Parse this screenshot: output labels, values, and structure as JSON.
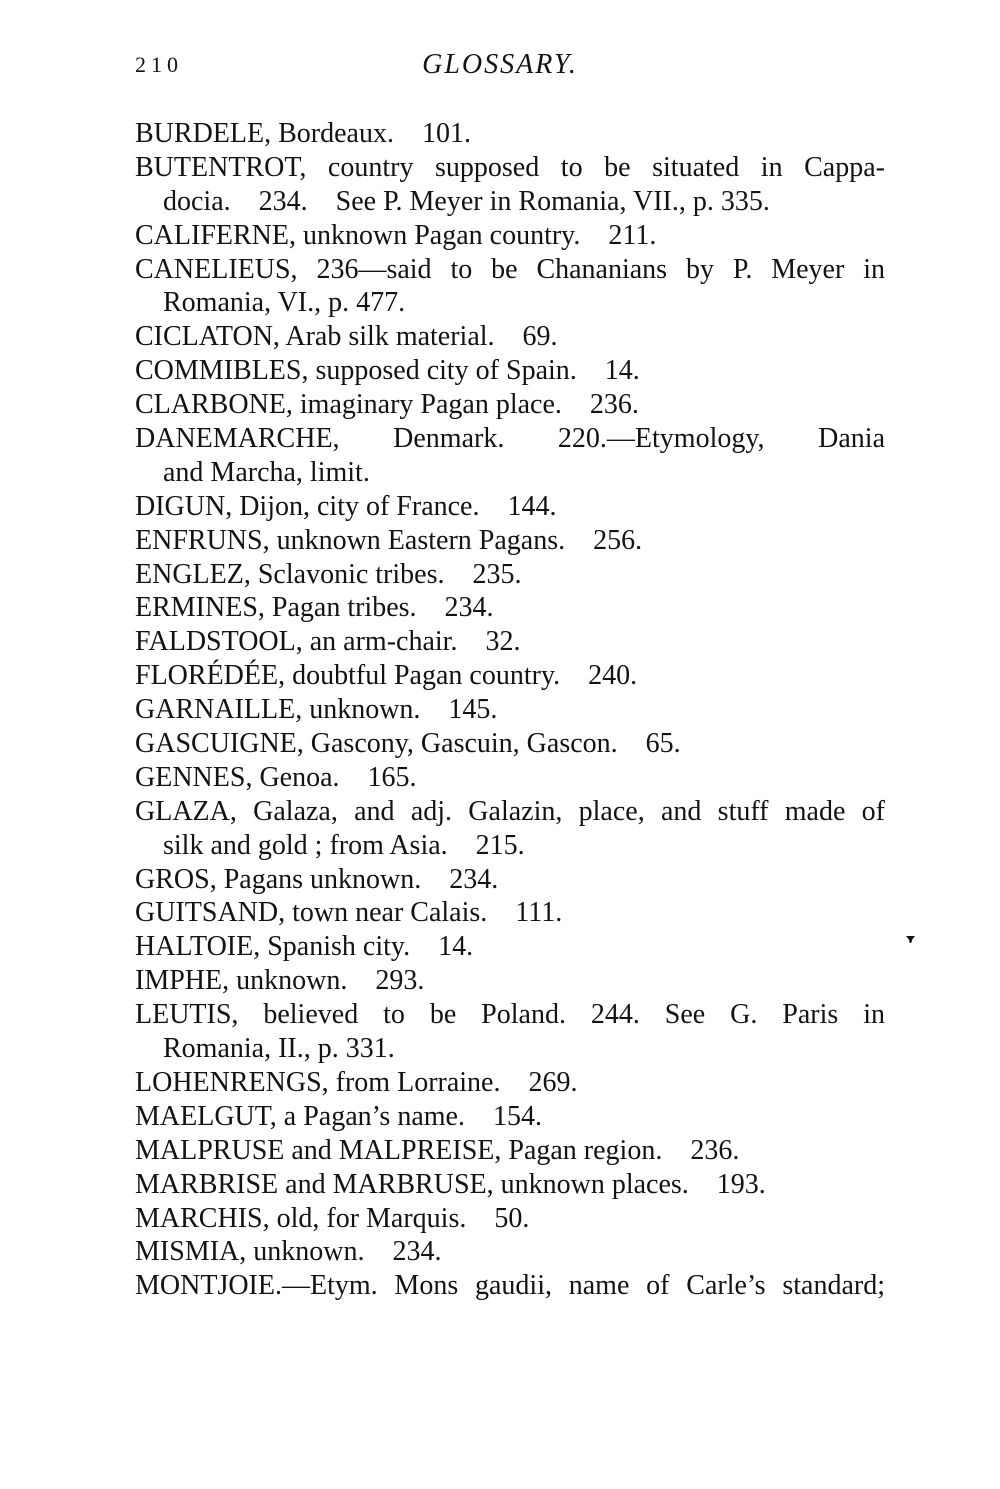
{
  "header": {
    "page_number": "210",
    "title": "GLOSSARY."
  },
  "entries": [
    {
      "term": "BURDELE",
      "lines": [
        {
          "text": "BURDELE, Bordeaux. 101.",
          "indent": false,
          "justify": false
        }
      ]
    },
    {
      "term": "BUTENTROT",
      "lines": [
        {
          "text": "BUTENTROT, country supposed to be situated in Cappa-",
          "indent": false,
          "justify": true
        },
        {
          "text": "docia. 234. See P. Meyer in Romania, VII., p. 335.",
          "indent": true,
          "justify": false
        }
      ]
    },
    {
      "term": "CALIFERNE",
      "lines": [
        {
          "text": "CALIFERNE, unknown Pagan country. 211.",
          "indent": false,
          "justify": false
        }
      ]
    },
    {
      "term": "CANELIEUS",
      "lines": [
        {
          "text": "CANELIEUS, 236—said to be Chananians by P. Meyer in",
          "indent": false,
          "justify": true
        },
        {
          "text": "Romania, VI., p. 477.",
          "indent": true,
          "justify": false
        }
      ]
    },
    {
      "term": "CICLATON",
      "lines": [
        {
          "text": "CICLATON, Arab silk material. 69.",
          "indent": false,
          "justify": false
        }
      ]
    },
    {
      "term": "COMMIBLES",
      "lines": [
        {
          "text": "COMMIBLES, supposed city of Spain. 14.",
          "indent": false,
          "justify": false
        }
      ]
    },
    {
      "term": "CLARBONE",
      "lines": [
        {
          "text": "CLARBONE, imaginary Pagan place. 236.",
          "indent": false,
          "justify": false
        }
      ]
    },
    {
      "term": "DANEMARCHE",
      "lines": [
        {
          "text": "DANEMARCHE, Denmark. 220.—Etymology, Dania",
          "indent": false,
          "justify": true
        },
        {
          "text": "and Marcha, limit.",
          "indent": true,
          "justify": false
        }
      ]
    },
    {
      "term": "DIGUN",
      "lines": [
        {
          "text": "DIGUN, Dijon, city of France. 144.",
          "indent": false,
          "justify": false
        }
      ]
    },
    {
      "term": "ENFRUNS",
      "lines": [
        {
          "text": "ENFRUNS, unknown Eastern Pagans. 256.",
          "indent": false,
          "justify": false
        }
      ]
    },
    {
      "term": "ENGLEZ",
      "lines": [
        {
          "text": "ENGLEZ, Sclavonic tribes. 235.",
          "indent": false,
          "justify": false
        }
      ]
    },
    {
      "term": "ERMINES",
      "lines": [
        {
          "text": "ERMINES, Pagan tribes. 234.",
          "indent": false,
          "justify": false
        }
      ]
    },
    {
      "term": "FALDSTOOL",
      "lines": [
        {
          "text": "FALDSTOOL, an arm-chair. 32.",
          "indent": false,
          "justify": false
        }
      ]
    },
    {
      "term": "FLORÉDÉE",
      "lines": [
        {
          "text": "FLORÉDÉE, doubtful Pagan country. 240.",
          "indent": false,
          "justify": false
        }
      ]
    },
    {
      "term": "GARNAILLE",
      "lines": [
        {
          "text": "GARNAILLE, unknown. 145.",
          "indent": false,
          "justify": false
        }
      ]
    },
    {
      "term": "GASCUIGNE",
      "lines": [
        {
          "text": "GASCUIGNE, Gascony, Gascuin, Gascon. 65.",
          "indent": false,
          "justify": false
        }
      ]
    },
    {
      "term": "GENNES",
      "lines": [
        {
          "text": "GENNES, Genoa. 165.",
          "indent": false,
          "justify": false
        }
      ]
    },
    {
      "term": "GLAZA",
      "lines": [
        {
          "text": "GLAZA, Galaza, and adj. Galazin, place, and stuff made of",
          "indent": false,
          "justify": true
        },
        {
          "text": "silk and gold ; from Asia. 215.",
          "indent": true,
          "justify": false
        }
      ]
    },
    {
      "term": "GROS",
      "lines": [
        {
          "text": "GROS, Pagans unknown. 234.",
          "indent": false,
          "justify": false
        }
      ]
    },
    {
      "term": "GUITSAND",
      "lines": [
        {
          "text": "GUITSAND, town near Calais. 111.",
          "indent": false,
          "justify": false
        }
      ]
    },
    {
      "term": "HALTOIE",
      "lines": [
        {
          "text": "HALTOIE, Spanish city. 14.",
          "indent": false,
          "justify": false
        }
      ]
    },
    {
      "term": "IMPHE",
      "lines": [
        {
          "text": "IMPHE, unknown. 293.",
          "indent": false,
          "justify": false
        }
      ]
    },
    {
      "term": "LEUTIS",
      "lines": [
        {
          "text": "LEUTIS, believed to be Poland. 244. See G. Paris in",
          "indent": false,
          "justify": true
        },
        {
          "text": "Romania, II., p. 331.",
          "indent": true,
          "justify": false
        }
      ]
    },
    {
      "term": "LOHENRENGS",
      "lines": [
        {
          "text": "LOHENRENGS, from Lorraine. 269.",
          "indent": false,
          "justify": false
        }
      ]
    },
    {
      "term": "MAELGUT",
      "lines": [
        {
          "text": "MAELGUT, a Pagan’s name. 154.",
          "indent": false,
          "justify": false
        }
      ]
    },
    {
      "term": "MALPRUSE and MALPREISE",
      "lines": [
        {
          "text": "MALPRUSE and MALPREISE, Pagan region. 236.",
          "indent": false,
          "justify": false
        }
      ]
    },
    {
      "term": "MARBRISE and MARBRUSE",
      "lines": [
        {
          "text": "MARBRISE and MARBRUSE, unknown places. 193.",
          "indent": false,
          "justify": false
        }
      ]
    },
    {
      "term": "MARCHIS",
      "lines": [
        {
          "text": "MARCHIS, old, for Marquis. 50.",
          "indent": false,
          "justify": false
        }
      ]
    },
    {
      "term": "MISMIA",
      "lines": [
        {
          "text": "MISMIA, unknown. 234.",
          "indent": false,
          "justify": false
        }
      ]
    },
    {
      "term": "MONTJOIE",
      "lines": [
        {
          "text": "MONTJOIE.—Etym. Mons gaudii, name of Carle’s standard;",
          "indent": false,
          "justify": true
        }
      ]
    }
  ]
}
